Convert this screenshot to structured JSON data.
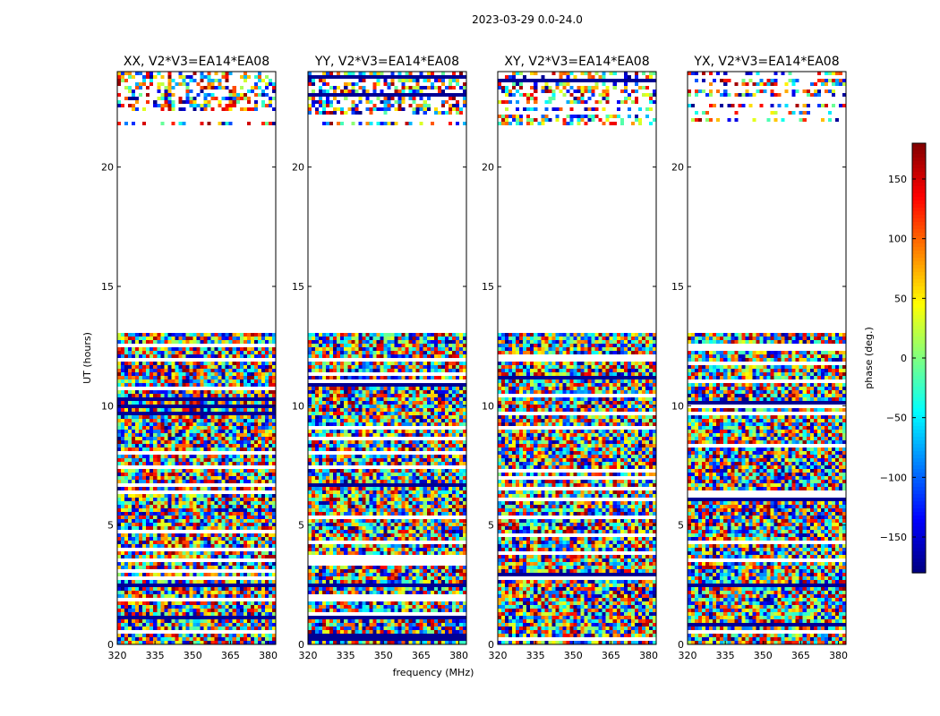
{
  "chart_data": {
    "type": "heatmap",
    "suptitle": "2023-03-29 0.0-24.0",
    "xlabel": "frequency (MHz)",
    "ylabel": "UT (hours)",
    "xlim": [
      320,
      383
    ],
    "ylim": [
      0,
      24
    ],
    "xticks": [
      "320",
      "335",
      "350",
      "365",
      "380"
    ],
    "xtick_values": [
      320,
      335,
      350,
      365,
      380
    ],
    "yticks": [
      "0",
      "5",
      "10",
      "15",
      "20"
    ],
    "ytick_values": [
      0,
      5,
      10,
      15,
      20
    ],
    "colorbar": {
      "label": "phase (deg.)",
      "range": [
        -180,
        180
      ],
      "ticks": [
        "−150",
        "−100",
        "−50",
        "0",
        "50",
        "100",
        "150"
      ],
      "tick_values": [
        -150,
        -100,
        -50,
        0,
        50,
        100,
        150
      ],
      "colormap": "jet"
    },
    "panels": [
      {
        "title": "XX, V2*V3=EA14*EA08",
        "pol": "XX"
      },
      {
        "title": "YY, V2*V3=EA14*EA08",
        "pol": "YY"
      },
      {
        "title": "XY, V2*V3=EA14*EA08",
        "pol": "XY"
      },
      {
        "title": "YX, V2*V3=EA14*EA08",
        "pol": "YX"
      }
    ],
    "data_gap_hours": [
      13.1,
      21.8
    ],
    "data_coverage_hours": [
      [
        0,
        13.1
      ],
      [
        21.8,
        24
      ]
    ]
  }
}
